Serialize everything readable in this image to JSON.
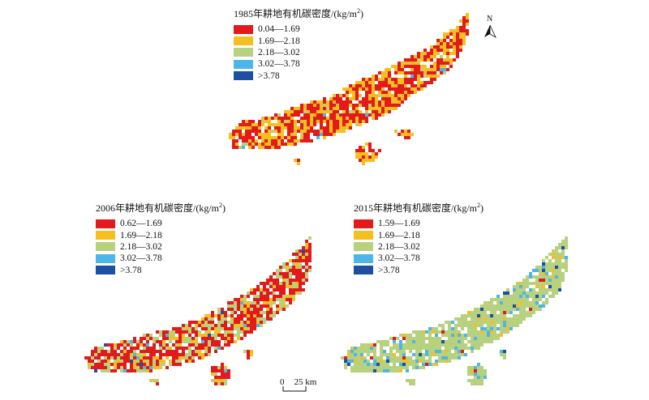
{
  "title_suffix": "年耕地有机碳密度/(kg/m",
  "unit_power": "2",
  "colors": [
    "#e31a1c",
    "#f5bf1f",
    "#b7d17f",
    "#4db6e8",
    "#1d4fa3"
  ],
  "panels": [
    {
      "year": "1985",
      "legend": [
        "0.04—1.69",
        "1.69—2.18",
        "2.18—3.02",
        "3.02—3.78",
        ">3.78"
      ],
      "mix": [
        0.55,
        0.4,
        0.04,
        0.005,
        0.0
      ]
    },
    {
      "year": "2006",
      "legend": [
        "0.62—1.69",
        "1.69—2.18",
        "2.18—3.02",
        "3.02—3.78",
        ">3.78"
      ],
      "mix": [
        0.52,
        0.18,
        0.28,
        0.015,
        0.005
      ]
    },
    {
      "year": "2015",
      "legend": [
        "1.59—1.69",
        "1.69—2.18",
        "2.18—3.02",
        "3.02—3.78",
        ">3.78"
      ],
      "mix": [
        0.02,
        0.05,
        0.8,
        0.1,
        0.03
      ]
    }
  ],
  "north_label": "N",
  "scale_zero": "0",
  "scale_text": "25 km"
}
